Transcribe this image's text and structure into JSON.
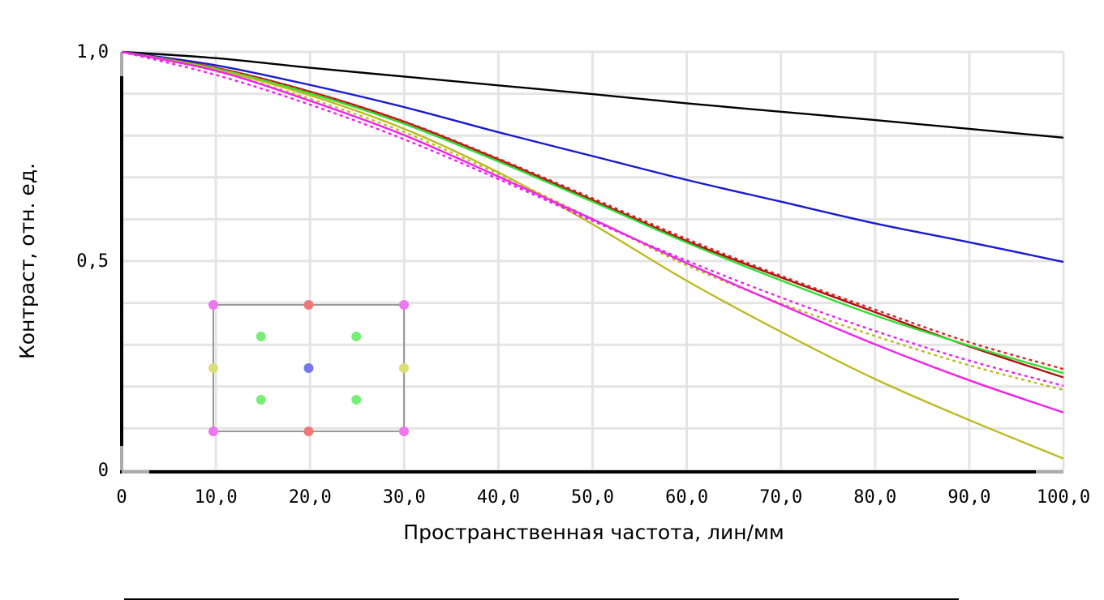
{
  "chart_data": {
    "type": "line",
    "title": "",
    "xlabel": "Пространственная частота, лин/мм",
    "ylabel": "Контраст, отн. ед.",
    "xlim": [
      0,
      100
    ],
    "ylim": [
      0,
      1
    ],
    "grid": true,
    "x_ticks": [
      {
        "value": 0,
        "label": "0"
      },
      {
        "value": 10,
        "label": "10,0"
      },
      {
        "value": 20,
        "label": "20,0"
      },
      {
        "value": 30,
        "label": "30,0"
      },
      {
        "value": 40,
        "label": "40,0"
      },
      {
        "value": 50,
        "label": "50,0"
      },
      {
        "value": 60,
        "label": "60,0"
      },
      {
        "value": 70,
        "label": "70,0"
      },
      {
        "value": 80,
        "label": "80,0"
      },
      {
        "value": 90,
        "label": "90,0"
      },
      {
        "value": 100,
        "label": "100,0"
      }
    ],
    "y_ticks": [
      {
        "value": 0,
        "label": "0"
      },
      {
        "value": 0.5,
        "label": "0,5"
      },
      {
        "value": 1.0,
        "label": "1,0"
      }
    ],
    "x": [
      0,
      10,
      20,
      30,
      40,
      50,
      60,
      70,
      80,
      90,
      100
    ],
    "series": [
      {
        "color": "#000000",
        "dash": false,
        "values": [
          1.0,
          0.985,
          0.962,
          0.941,
          0.92,
          0.899,
          0.877,
          0.857,
          0.837,
          0.816,
          0.795
        ]
      },
      {
        "color": "#1a1acc",
        "dash": false,
        "values": [
          1.0,
          0.968,
          0.921,
          0.868,
          0.808,
          0.751,
          0.694,
          0.642,
          0.59,
          0.545,
          0.498
        ]
      },
      {
        "color": "#b01010",
        "dash": false,
        "values": [
          1.0,
          0.962,
          0.905,
          0.833,
          0.743,
          0.646,
          0.548,
          0.461,
          0.378,
          0.296,
          0.222
        ]
      },
      {
        "color": "#dd2222",
        "dash": true,
        "values": [
          1.0,
          0.962,
          0.905,
          0.834,
          0.745,
          0.65,
          0.553,
          0.465,
          0.384,
          0.306,
          0.242
        ]
      },
      {
        "color": "#33dd33",
        "dash": false,
        "values": [
          1.0,
          0.96,
          0.901,
          0.828,
          0.738,
          0.642,
          0.544,
          0.454,
          0.37,
          0.298,
          0.232
        ]
      },
      {
        "color": "#bbbb22",
        "dash": false,
        "values": [
          1.0,
          0.958,
          0.896,
          0.816,
          0.712,
          0.588,
          0.453,
          0.331,
          0.218,
          0.12,
          0.028
        ]
      },
      {
        "color": "#bbbb22",
        "dash": true,
        "values": [
          1.0,
          0.954,
          0.888,
          0.808,
          0.708,
          0.601,
          0.49,
          0.399,
          0.321,
          0.251,
          0.192
        ]
      },
      {
        "color": "#ee22ee",
        "dash": false,
        "values": [
          1.0,
          0.955,
          0.883,
          0.801,
          0.702,
          0.6,
          0.495,
          0.396,
          0.301,
          0.215,
          0.138
        ]
      },
      {
        "color": "#ee22ee",
        "dash": true,
        "values": [
          1.0,
          0.945,
          0.874,
          0.791,
          0.696,
          0.596,
          0.501,
          0.413,
          0.333,
          0.262,
          0.202
        ]
      }
    ],
    "inset": {
      "frame_color": "#999999",
      "points": [
        {
          "col": 0,
          "row": 0,
          "color": "#ee77ee"
        },
        {
          "col": 2,
          "row": 0,
          "color": "#ee7777"
        },
        {
          "col": 4,
          "row": 0,
          "color": "#ee77ee"
        },
        {
          "col": 1,
          "row": 1,
          "color": "#77ee77"
        },
        {
          "col": 3,
          "row": 1,
          "color": "#77ee77"
        },
        {
          "col": 0,
          "row": 2,
          "color": "#dddd77"
        },
        {
          "col": 2,
          "row": 2,
          "color": "#7777ee"
        },
        {
          "col": 4,
          "row": 2,
          "color": "#dddd77"
        },
        {
          "col": 1,
          "row": 3,
          "color": "#77ee77"
        },
        {
          "col": 3,
          "row": 3,
          "color": "#77ee77"
        },
        {
          "col": 0,
          "row": 4,
          "color": "#ee77ee"
        },
        {
          "col": 2,
          "row": 4,
          "color": "#ee7777"
        },
        {
          "col": 4,
          "row": 4,
          "color": "#ee77ee"
        }
      ]
    }
  }
}
